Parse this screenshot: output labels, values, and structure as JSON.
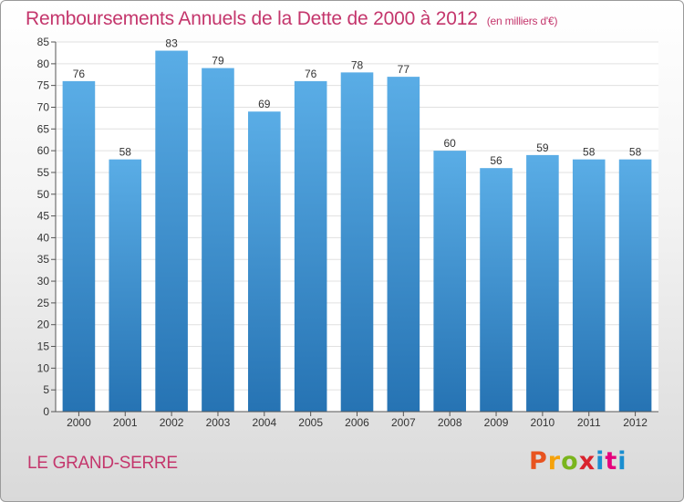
{
  "page": {
    "title": "Remboursements Annuels de la Dette de 2000 à 2012",
    "subtitle": "(en milliers d'€)",
    "commune": "LE GRAND-SERRE",
    "logo": "Proxiti",
    "logo_colors": [
      "#e8531f",
      "#f5a20b",
      "#7ab51d",
      "#d9232d",
      "#1a8ed0",
      "#e5007d",
      "#1a8ed0"
    ]
  },
  "chart_data": {
    "type": "bar",
    "title": "Remboursements Annuels de la Dette de 2000 à 2012",
    "subtitle": "(en milliers d'€)",
    "categories": [
      "2000",
      "2001",
      "2002",
      "2003",
      "2004",
      "2005",
      "2006",
      "2007",
      "2008",
      "2009",
      "2010",
      "2011",
      "2012"
    ],
    "values": [
      76,
      58,
      83,
      79,
      69,
      76,
      78,
      77,
      60,
      56,
      59,
      58,
      58
    ],
    "ylim": [
      0,
      85
    ],
    "ytick_step": 5,
    "grid": true,
    "colors": {
      "title": "#c4366c",
      "bar_light": "#5aade6",
      "bar_dark": "#2673b3",
      "grid": "#e0e0e0",
      "axis_text": "#333333"
    }
  }
}
